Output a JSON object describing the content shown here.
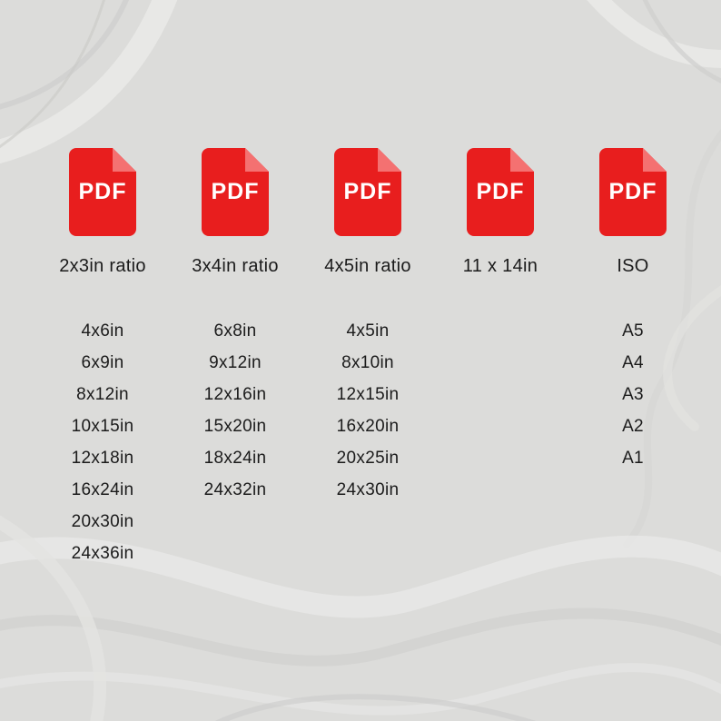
{
  "colors": {
    "background": "#dcdcda",
    "icon_red": "#e81e1e",
    "icon_fold": "#f47171",
    "text": "#1b1b1b"
  },
  "pdf_icon": {
    "label": "PDF"
  },
  "columns": [
    {
      "ratio": "2x3in ratio",
      "sizes": [
        "4x6in",
        "6x9in",
        "8x12in",
        "10x15in",
        "12x18in",
        "16x24in",
        "20x30in",
        "24x36in"
      ]
    },
    {
      "ratio": "3x4in ratio",
      "sizes": [
        "6x8in",
        "9x12in",
        "12x16in",
        "15x20in",
        "18x24in",
        "24x32in"
      ]
    },
    {
      "ratio": "4x5in ratio",
      "sizes": [
        "4x5in",
        "8x10in",
        "12x15in",
        "16x20in",
        "20x25in",
        "24x30in"
      ]
    },
    {
      "ratio": "11 x 14in",
      "sizes": []
    },
    {
      "ratio": "ISO",
      "sizes": [
        "A5",
        "A4",
        "A3",
        "A2",
        "A1"
      ]
    }
  ]
}
